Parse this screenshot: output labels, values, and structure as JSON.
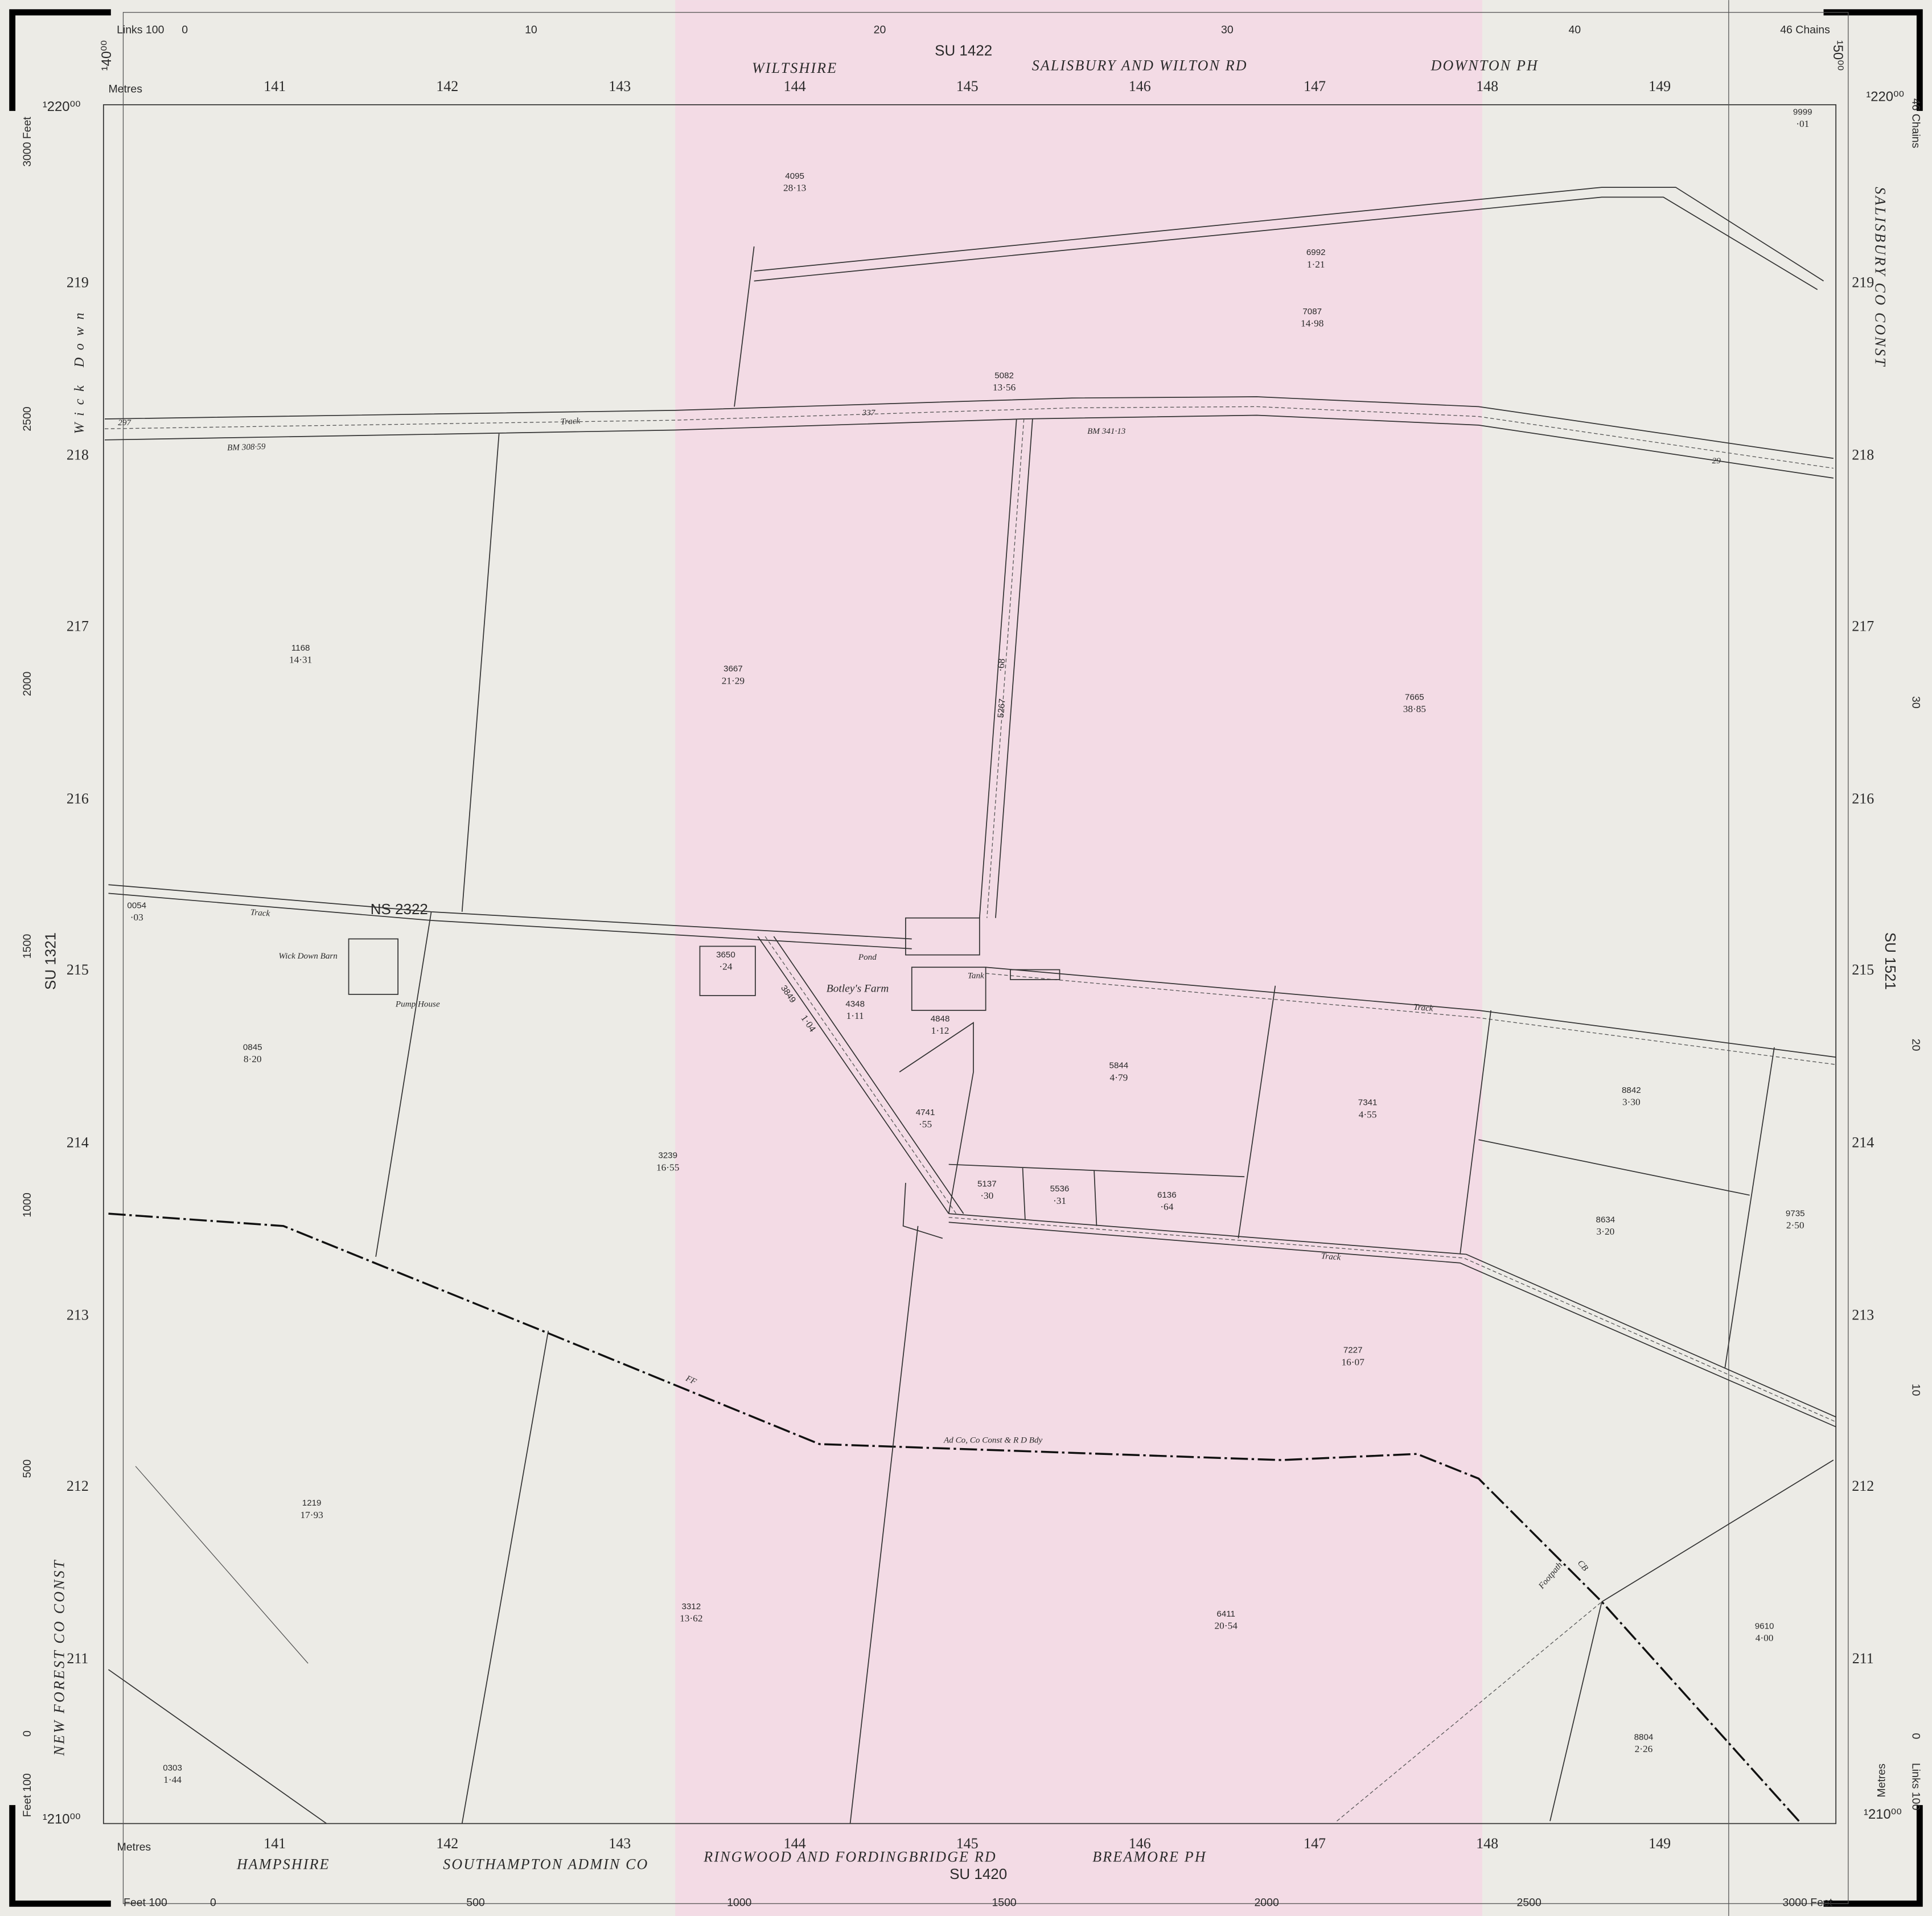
{
  "map": {
    "top_ref": "SU 1422",
    "bottom_ref": "SU 1420",
    "left_ref": "SU 1321",
    "right_ref": "SU 1521",
    "north_labels": [
      "WILTSHIRE",
      "SALISBURY AND WILTON RD",
      "DOWNTON PH"
    ],
    "south_labels": [
      "HAMPSHIRE",
      "SOUTHAMPTON ADMIN CO",
      "RINGWOOD AND FORDINGBRIDGE RD",
      "BREAMORE PH"
    ],
    "west_label": "NEW FOREST CO CONST",
    "east_label": "SALISBURY CO CONST",
    "corners": [
      "¹40⁰⁰",
      "¹50⁰⁰",
      "¹220⁰⁰",
      "¹210⁰⁰"
    ],
    "eastings": [
      141,
      142,
      143,
      144,
      145,
      146,
      147,
      148,
      149
    ],
    "northings": [
      219,
      218,
      217,
      216,
      215,
      214,
      213,
      212,
      211
    ],
    "metres": "Metres",
    "top_scale": [
      "Links 100",
      0,
      10,
      20,
      30,
      40,
      "46 Chains"
    ],
    "east_scale": [
      "46 Chains",
      30,
      20,
      10,
      0,
      "Links 100"
    ],
    "west_scale": [
      "3000 Feet",
      2500,
      2000,
      1500,
      1000,
      500,
      0,
      "Feet 100"
    ],
    "south_scale": [
      "Feet 100",
      0,
      500,
      1000,
      1500,
      2000,
      2500,
      "3000 Feet"
    ],
    "places": [
      "Wick Down",
      "Botley's Farm",
      "Wick Down Barn",
      "Pump House",
      "Pond",
      "Tank"
    ],
    "annotations": [
      "Track",
      "Track",
      "Track",
      "Track",
      "BM 308·59",
      "BM 341·13",
      "Ad Co, Co Const & R D Bdy",
      "Footpath",
      "FF",
      "CB",
      "297",
      "337",
      "29",
      "NS 2322"
    ],
    "parcels": [
      {
        "number": "4095",
        "area": "28·13"
      },
      {
        "number": "6992",
        "area": "1·21"
      },
      {
        "number": "7087",
        "area": "14·98"
      },
      {
        "number": "5082",
        "area": "13·56"
      },
      {
        "number": "1168",
        "area": "14·31"
      },
      {
        "number": "3667",
        "area": "21·29"
      },
      {
        "number": "7665",
        "area": "38·85"
      },
      {
        "number": "0054",
        "area": "·03"
      },
      {
        "number": "3650",
        "area": "·24"
      },
      {
        "number": "4348",
        "area": "1·11"
      },
      {
        "number": "4848",
        "area": "1·12"
      },
      {
        "number": "0845",
        "area": "8·20"
      },
      {
        "number": "5844",
        "area": "4·79"
      },
      {
        "number": "7341",
        "area": "4·55"
      },
      {
        "number": "8842",
        "area": "3·30"
      },
      {
        "number": "4741",
        "area": "·55"
      },
      {
        "number": "3239",
        "area": "16·55"
      },
      {
        "number": "5137",
        "area": "·30"
      },
      {
        "number": "5536",
        "area": "·31"
      },
      {
        "number": "6136",
        "area": "·64"
      },
      {
        "number": "8634",
        "area": "3·20"
      },
      {
        "number": "9735",
        "area": "2·50"
      },
      {
        "number": "7227",
        "area": "16·07"
      },
      {
        "number": "1219",
        "area": "17·93"
      },
      {
        "number": "3312",
        "area": "13·62"
      },
      {
        "number": "6411",
        "area": "20·54"
      },
      {
        "number": "9610",
        "area": "4·00"
      },
      {
        "number": "8804",
        "area": "2·26"
      },
      {
        "number": "0303",
        "area": "1·44"
      },
      {
        "number": "9999",
        "area": "·01"
      },
      {
        "number": "5267",
        "area": "·68"
      },
      {
        "number": "3849",
        "area": "1·04"
      }
    ]
  }
}
